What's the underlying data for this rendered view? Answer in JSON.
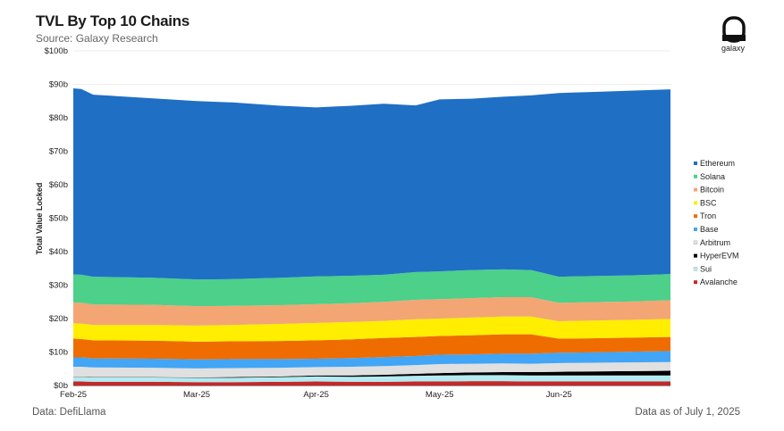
{
  "header": {
    "title": "TVL By Top 10 Chains",
    "subtitle": "Source: Galaxy Research"
  },
  "brand": {
    "name": "galaxy"
  },
  "footer": {
    "left": "Data: DefiLlama",
    "right": "Data as of July 1, 2025"
  },
  "chart_data": {
    "type": "area",
    "stacked": true,
    "title": "TVL By Top 10 Chains",
    "ylabel": "Total Value Locked",
    "xlabel": "",
    "ylim": [
      0,
      100
    ],
    "yticks": [
      0,
      10,
      20,
      30,
      40,
      50,
      60,
      70,
      80,
      90,
      100
    ],
    "ytick_labels": [
      "$0b",
      "$10b",
      "$20b",
      "$30b",
      "$40b",
      "$50b",
      "$60b",
      "$70b",
      "$80b",
      "$90b",
      "$100b"
    ],
    "x_range": [
      0,
      150
    ],
    "xticks": [
      0,
      31,
      61,
      92,
      122
    ],
    "xtick_labels": [
      "Feb-25",
      "Mar-25",
      "Apr-25",
      "May-25",
      "Jun-25"
    ],
    "x": [
      0,
      2,
      5,
      20,
      31,
      40,
      52,
      61,
      70,
      78,
      86,
      92,
      100,
      108,
      115,
      122,
      130,
      140,
      150
    ],
    "legend_position": "right",
    "series": [
      {
        "name": "Avalanche",
        "color": "#c62828",
        "values": [
          1.2,
          1.2,
          1.1,
          1.1,
          1.0,
          1.0,
          1.1,
          1.2,
          1.1,
          1.1,
          1.2,
          1.2,
          1.3,
          1.3,
          1.2,
          1.2,
          1.2,
          1.2,
          1.2
        ]
      },
      {
        "name": "Sui",
        "color": "#b2ebf2",
        "values": [
          1.3,
          1.3,
          1.3,
          1.3,
          1.3,
          1.3,
          1.4,
          1.5,
          1.5,
          1.6,
          1.7,
          1.8,
          1.8,
          1.8,
          1.8,
          1.8,
          1.8,
          1.8,
          1.8
        ]
      },
      {
        "name": "HyperEVM",
        "color": "#000000",
        "values": [
          0.1,
          0.1,
          0.1,
          0.1,
          0.1,
          0.2,
          0.2,
          0.3,
          0.4,
          0.5,
          0.6,
          0.7,
          0.8,
          0.9,
          1.0,
          1.1,
          1.2,
          1.3,
          1.4
        ]
      },
      {
        "name": "Arbitrum",
        "color": "#e0e0e0",
        "values": [
          3.0,
          3.0,
          2.9,
          2.8,
          2.7,
          2.7,
          2.6,
          2.5,
          2.6,
          2.6,
          2.6,
          2.7,
          2.6,
          2.6,
          2.5,
          2.6,
          2.6,
          2.6,
          2.6
        ]
      },
      {
        "name": "Base",
        "color": "#42a5f5",
        "values": [
          2.8,
          2.8,
          2.7,
          2.7,
          2.7,
          2.7,
          2.6,
          2.5,
          2.6,
          2.7,
          2.7,
          2.8,
          2.8,
          2.9,
          3.0,
          3.1,
          3.1,
          3.2,
          3.3
        ]
      },
      {
        "name": "Tron",
        "color": "#ef6c00",
        "values": [
          5.6,
          5.5,
          5.4,
          5.4,
          5.3,
          5.3,
          5.4,
          5.5,
          5.6,
          5.7,
          5.7,
          5.6,
          5.7,
          5.8,
          5.8,
          4.2,
          4.2,
          4.2,
          4.2
        ]
      },
      {
        "name": "BSC",
        "color": "#ffee00",
        "values": [
          4.6,
          4.6,
          4.6,
          4.7,
          4.8,
          4.9,
          5.1,
          5.2,
          5.2,
          5.1,
          5.3,
          5.2,
          5.3,
          5.3,
          5.3,
          5.2,
          5.3,
          5.3,
          5.4
        ]
      },
      {
        "name": "Bitcoin",
        "color": "#f4a574",
        "values": [
          6.2,
          6.2,
          6.1,
          6.0,
          5.8,
          5.7,
          5.6,
          5.6,
          5.6,
          5.7,
          5.8,
          5.8,
          5.8,
          5.8,
          5.8,
          5.5,
          5.5,
          5.5,
          5.6
        ]
      },
      {
        "name": "Solana",
        "color": "#4cd08a",
        "values": [
          8.4,
          8.4,
          8.3,
          8.1,
          8.0,
          8.0,
          8.2,
          8.3,
          8.2,
          8.1,
          8.3,
          8.3,
          8.4,
          8.3,
          8.1,
          7.8,
          7.8,
          7.8,
          7.8
        ]
      },
      {
        "name": "Ethereum",
        "color": "#1f6fc5",
        "values": [
          55.6,
          55.5,
          54.4,
          53.6,
          53.3,
          52.8,
          51.4,
          50.5,
          50.8,
          51.1,
          49.8,
          51.4,
          51.2,
          51.6,
          52.2,
          54.9,
          55.0,
          55.2,
          55.2
        ]
      }
    ]
  }
}
